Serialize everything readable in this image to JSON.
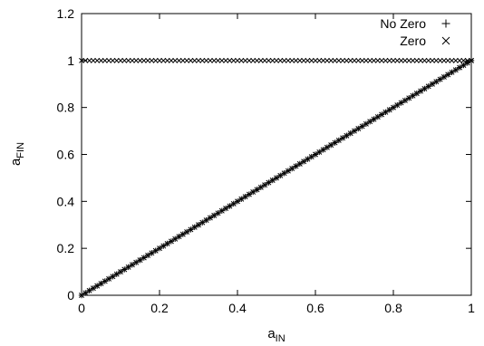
{
  "chart_data": {
    "type": "scatter",
    "xlabel": "a",
    "xlabel_sub": "IN",
    "ylabel": "a",
    "ylabel_sub": "FIN",
    "xlim": [
      0,
      1
    ],
    "ylim": [
      0,
      1.2
    ],
    "xticks": [
      "0",
      "0.2",
      "0.4",
      "0.6",
      "0.8",
      "1"
    ],
    "yticks": [
      "0",
      "0.2",
      "0.4",
      "0.6",
      "0.8",
      "1",
      "1.2"
    ],
    "grid": false,
    "legend_position": "top-right",
    "colors": {
      "axis": "#000000",
      "marker": "#000000",
      "background": "#ffffff"
    },
    "series": [
      {
        "name": "No Zero",
        "marker": "plus",
        "x_start": 0,
        "x_end": 1,
        "x_step": 0.01,
        "relation": "y = x",
        "note_points": [
          [
            0,
            0
          ],
          [
            0.2,
            0.2
          ],
          [
            0.4,
            0.4
          ],
          [
            0.6,
            0.6
          ],
          [
            0.8,
            0.8
          ],
          [
            1,
            1
          ]
        ]
      },
      {
        "name": "Zero",
        "marker": "cross",
        "x_start": 0,
        "x_end": 1,
        "x_step": 0.01,
        "relation": "y = x (lower) and y = 1 (upper)",
        "note_points": [
          [
            0,
            1
          ],
          [
            0.5,
            1
          ],
          [
            1,
            1
          ],
          [
            0,
            0
          ],
          [
            0.5,
            0.5
          ],
          [
            1,
            1
          ]
        ]
      }
    ]
  }
}
